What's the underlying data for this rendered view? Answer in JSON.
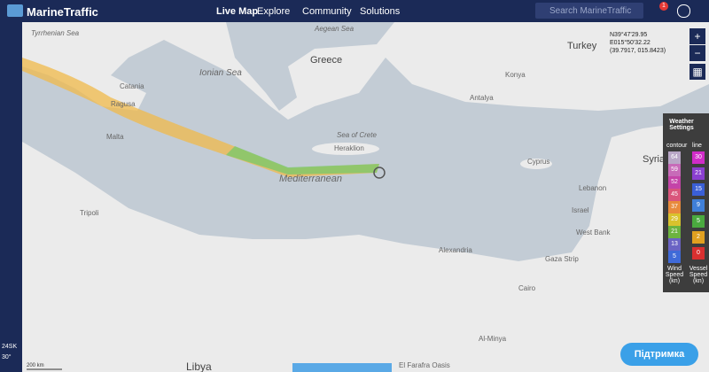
{
  "header": {
    "brand": "MarineTraffic",
    "nav": [
      "Live Map",
      "Explore",
      "Community",
      "Solutions"
    ],
    "search_placeholder": "Search MarineTraffic",
    "notification_count": "1"
  },
  "coordinates": {
    "lat": "N39°47'29.95",
    "lon": "E015°50'32.22",
    "decimal": "(39.7917, 015.8423)"
  },
  "weather": {
    "title": "Weather Settings",
    "contour_label": "contour",
    "line_label": "line",
    "contour_values": [
      "64",
      "59",
      "52",
      "45",
      "37",
      "29",
      "21",
      "13",
      "5"
    ],
    "line_values": [
      "30",
      "21",
      "15",
      "9",
      "5",
      "2",
      "0"
    ],
    "contour_caption": "Wind Speed (kn)",
    "line_caption": "Vessel Speed (kn)"
  },
  "map_labels": [
    "Tyrrhenian Sea",
    "Ionian Sea",
    "Aegean Sea",
    "Greece",
    "Turkey",
    "Sea of Crete",
    "Heraklion",
    "Catania",
    "Ragusa",
    "Malta",
    "Mediterranean",
    "Cyprus",
    "Lebanon",
    "Syria",
    "Israel",
    "West Bank",
    "Gaza Strip",
    "Tripoli",
    "Libya",
    "Cairo",
    "Al-Minya",
    "El Farafra Oasis",
    "Konya",
    "Antalya",
    "Alexandria"
  ],
  "scale": "200 km",
  "status": [
    "24SK",
    "30°"
  ],
  "support_button": "Підтримка"
}
